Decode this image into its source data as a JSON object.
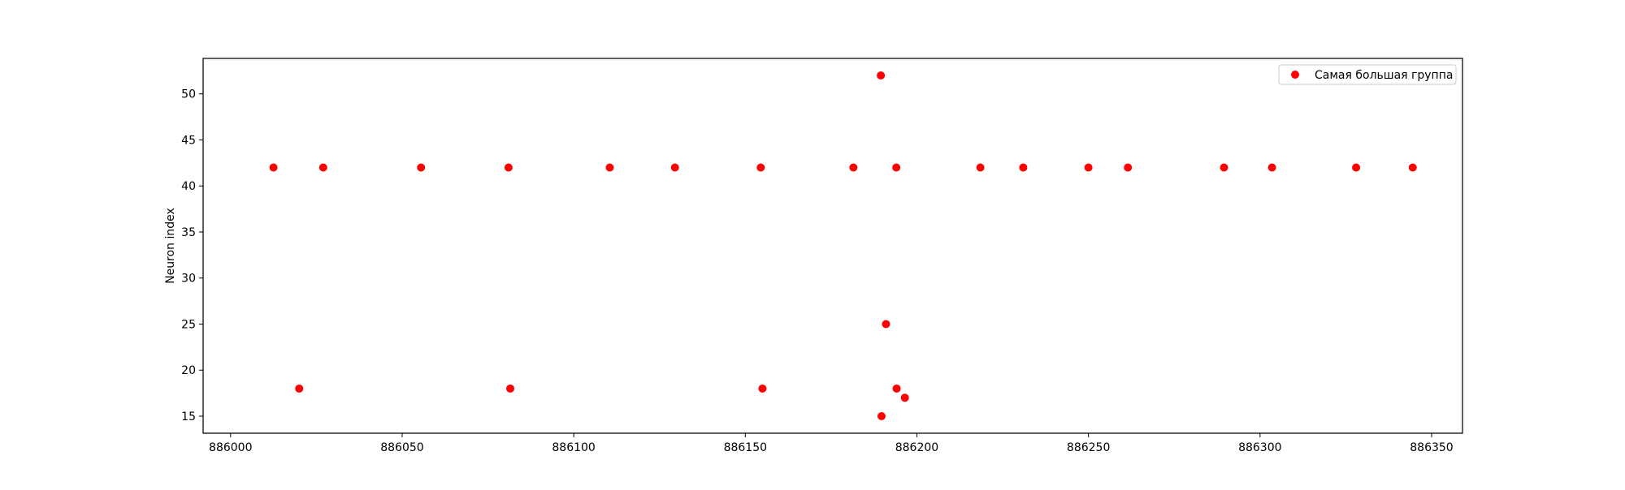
{
  "chart_data": {
    "type": "scatter",
    "title": "",
    "xlabel": "",
    "ylabel": "Neuron index",
    "xlim": [
      885992,
      886359
    ],
    "ylim": [
      13.15,
      53.85
    ],
    "xticks": [
      886000,
      886050,
      886100,
      886150,
      886200,
      886250,
      886300,
      886350
    ],
    "xtick_labels": [
      "886000",
      "886050",
      "886100",
      "886150",
      "886200",
      "886250",
      "886300",
      "886350"
    ],
    "yticks": [
      15,
      20,
      25,
      30,
      35,
      40,
      45,
      50
    ],
    "ytick_labels": [
      "15",
      "20",
      "25",
      "30",
      "35",
      "40",
      "45",
      "50"
    ],
    "grid": false,
    "legend": {
      "position": "top-right",
      "entries": [
        "Самая большая группа"
      ]
    },
    "series": [
      {
        "name": "Самая большая группа",
        "color": "#ff0000",
        "marker": "circle",
        "points": [
          {
            "x": 886012.5,
            "y": 42
          },
          {
            "x": 886020,
            "y": 18
          },
          {
            "x": 886027,
            "y": 42
          },
          {
            "x": 886055.5,
            "y": 42
          },
          {
            "x": 886081,
            "y": 42
          },
          {
            "x": 886081.5,
            "y": 18
          },
          {
            "x": 886110.5,
            "y": 42
          },
          {
            "x": 886129.5,
            "y": 42
          },
          {
            "x": 886154.5,
            "y": 42
          },
          {
            "x": 886155,
            "y": 18
          },
          {
            "x": 886181.5,
            "y": 42
          },
          {
            "x": 886189.5,
            "y": 52
          },
          {
            "x": 886189.7,
            "y": 15
          },
          {
            "x": 886191,
            "y": 25
          },
          {
            "x": 886194,
            "y": 42
          },
          {
            "x": 886194.1,
            "y": 18
          },
          {
            "x": 886196.5,
            "y": 17
          },
          {
            "x": 886218.5,
            "y": 42
          },
          {
            "x": 886231,
            "y": 42
          },
          {
            "x": 886250,
            "y": 42
          },
          {
            "x": 886261.5,
            "y": 42
          },
          {
            "x": 886289.5,
            "y": 42
          },
          {
            "x": 886303.5,
            "y": 42
          },
          {
            "x": 886328,
            "y": 42
          },
          {
            "x": 886344.5,
            "y": 42
          }
        ]
      }
    ]
  }
}
